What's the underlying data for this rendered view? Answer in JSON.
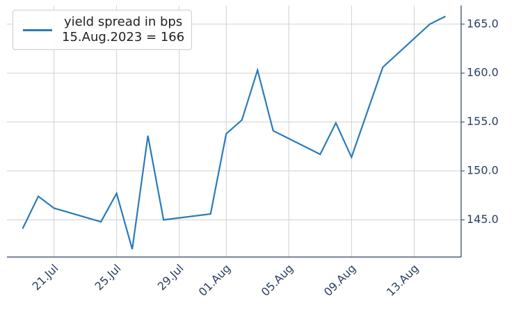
{
  "chart_data": {
    "type": "line",
    "x": [
      "19.Jul",
      "20.Jul",
      "21.Jul",
      "24.Jul",
      "25.Jul",
      "26.Jul",
      "27.Jul",
      "28.Jul",
      "31.Jul",
      "01.Aug",
      "02.Aug",
      "03.Aug",
      "04.Aug",
      "07.Aug",
      "08.Aug",
      "09.Aug",
      "11.Aug",
      "14.Aug",
      "15.Aug"
    ],
    "series": [
      {
        "name": "yield spread in bps\n15.Aug.2023 = 166",
        "color": "#2b7bba",
        "values": [
          144.1,
          147.4,
          146.2,
          144.8,
          147.7,
          142.0,
          153.6,
          145.0,
          145.6,
          153.8,
          155.2,
          160.3,
          154.1,
          151.7,
          154.9,
          151.4,
          160.6,
          165.0,
          165.8
        ]
      }
    ],
    "xlim": [
      "18.Jul",
      "16.Aug"
    ],
    "xticks": [
      "21.Jul",
      "25.Jul",
      "29.Jul",
      "01.Aug",
      "05.Aug",
      "09.Aug",
      "13.Aug"
    ],
    "ylim": [
      141.2,
      166.9
    ],
    "yticks": [
      {
        "value": 145,
        "label": "145.0"
      },
      {
        "value": 150,
        "label": "150.0"
      },
      {
        "value": 155,
        "label": "155.0"
      },
      {
        "value": 160,
        "label": "160.0"
      },
      {
        "value": 165,
        "label": "165.0"
      }
    ],
    "grid": true,
    "legend": "upper left"
  }
}
